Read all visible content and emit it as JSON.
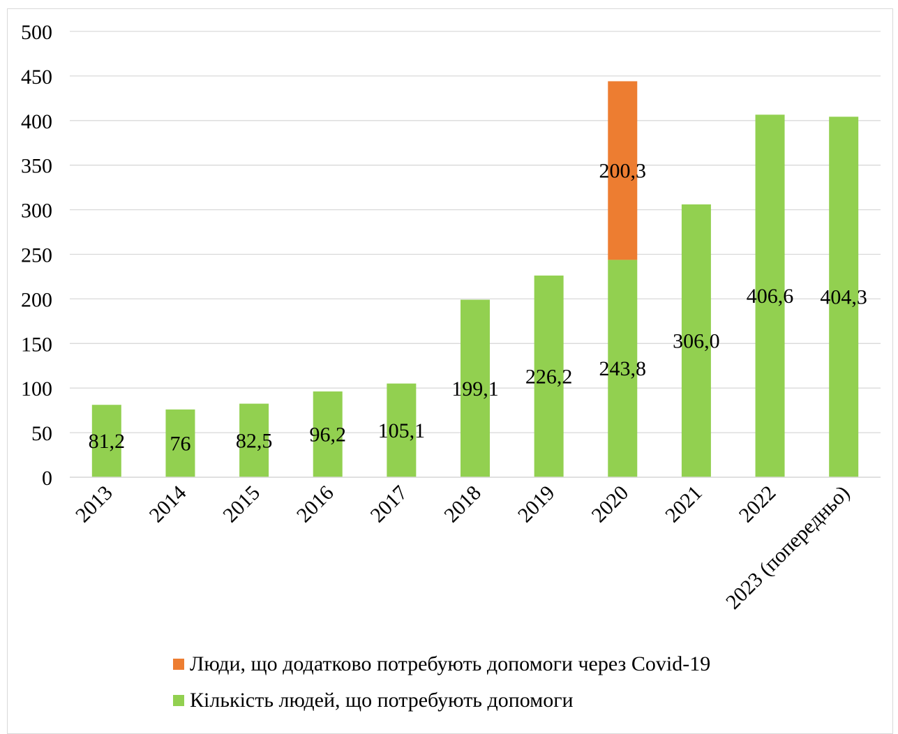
{
  "chart_data": {
    "type": "bar",
    "stacked": true,
    "categories": [
      "2013",
      "2014",
      "2015",
      "2016",
      "2017",
      "2018",
      "2019",
      "2020",
      "2021",
      "2022",
      "2023 (попередньо)"
    ],
    "series": [
      {
        "name": "Кількість людей, що потребують допомоги",
        "color": "#92d050",
        "values": [
          81.2,
          76,
          82.5,
          96.2,
          105.1,
          199.1,
          226.2,
          243.8,
          306.0,
          406.6,
          404.3
        ],
        "labels": [
          "81,2",
          "76",
          "82,5",
          "96,2",
          "105,1",
          "199,1",
          "226,2",
          "243,8",
          "306,0",
          "406,6",
          "404,3"
        ]
      },
      {
        "name": "Люди, що додатково потребують допомоги через Covid-19",
        "color": "#ed7d31",
        "values": [
          null,
          null,
          null,
          null,
          null,
          null,
          null,
          200.3,
          null,
          null,
          null
        ],
        "labels": [
          "",
          "",
          "",
          "",
          "",
          "",
          "",
          "200,3",
          "",
          "",
          ""
        ]
      }
    ],
    "ylim": [
      0,
      500
    ],
    "yticks": [
      "0",
      "50",
      "100",
      "150",
      "200",
      "250",
      "300",
      "350",
      "400",
      "450",
      "500"
    ],
    "grid": true,
    "legend_position": "bottom"
  },
  "legend": [
    {
      "label": "Люди, що додатково потребують допомоги через Covid-19",
      "color": "#ed7d31"
    },
    {
      "label": "Кількість людей, що потребують допомоги",
      "color": "#92d050"
    }
  ]
}
